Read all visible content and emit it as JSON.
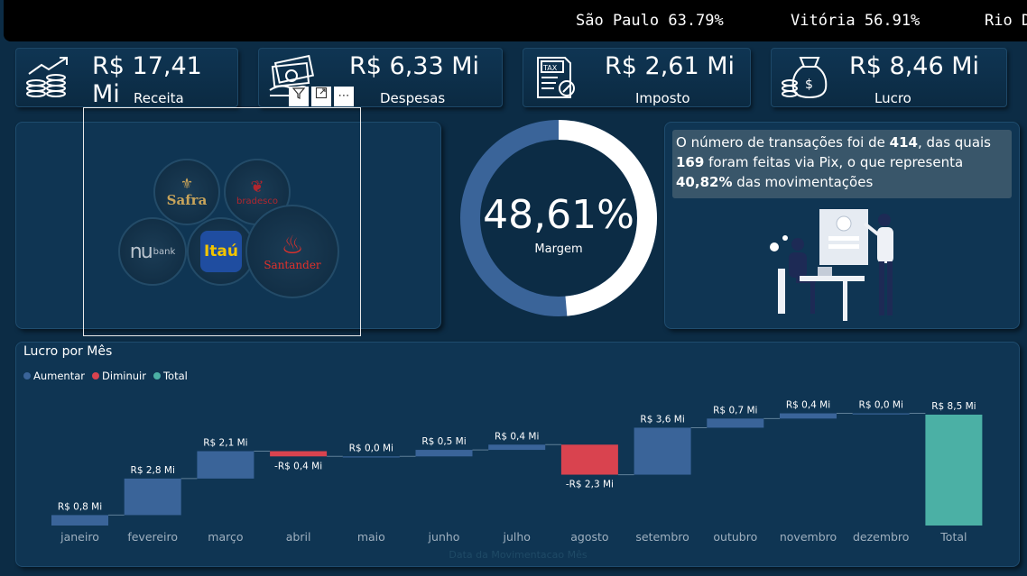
{
  "ticker": {
    "items": [
      "São Paulo 63.79%",
      "Vitória 56.91%",
      "Rio D"
    ]
  },
  "kpis": [
    {
      "value": "R$ 17,41 Mi",
      "label": "Receita",
      "icon": "revenue-growth-icon"
    },
    {
      "value": "R$ 6,33 Mi",
      "label": "Despesas",
      "icon": "money-hand-icon"
    },
    {
      "value": "R$ 2,61 Mi",
      "label": "Imposto",
      "icon": "tax-document-icon"
    },
    {
      "value": "R$ 8,46 Mi",
      "label": "Lucro",
      "icon": "money-bag-icon"
    }
  ],
  "visual_tools": {
    "filter": "filter-icon",
    "focus": "focus-mode-icon",
    "more": "⋯"
  },
  "banks": {
    "safra": "Safra",
    "bradesco": "bradesco",
    "nubank": "bank",
    "itau": "Itaú",
    "santander": "Santander"
  },
  "margin": {
    "value": "48,61%",
    "label": "Margem",
    "fraction": 0.4861
  },
  "info": {
    "part1": "O número de transações foi de ",
    "total": "414",
    "part2": ", das quais ",
    "pix": "169",
    "part3": " foram feitas via Pix, o que representa ",
    "percent": "40,82%",
    "part4": " das movimentações"
  },
  "colors": {
    "increase": "#3a6499",
    "decrease": "#d9434f",
    "total": "#4bb0a5",
    "donut_fill": "#3a6499",
    "donut_rest": "#ffffff"
  },
  "chart_data": {
    "type": "waterfall",
    "title": "Lucro por Mês",
    "xlabel": "Data da Movimentacao Mês",
    "legend": [
      "Aumentar",
      "Diminuir",
      "Total"
    ],
    "legend_position": "top-left",
    "categories": [
      "janeiro",
      "fevereiro",
      "março",
      "abril",
      "maio",
      "junho",
      "julho",
      "agosto",
      "setembro",
      "outubro",
      "novembro",
      "dezembro",
      "Total"
    ],
    "values": [
      0.8,
      2.8,
      2.1,
      -0.4,
      0.0,
      0.5,
      0.4,
      -2.3,
      3.6,
      0.7,
      0.4,
      0.0,
      8.5
    ],
    "labels": [
      "R$ 0,8 Mi",
      "R$ 2,8 Mi",
      "R$ 2,1 Mi",
      "-R$ 0,4 Mi",
      "R$ 0,0 Mi",
      "R$ 0,5 Mi",
      "R$ 0,4 Mi",
      "-R$ 2,3 Mi",
      "R$ 3,6 Mi",
      "R$ 0,7 Mi",
      "R$ 0,4 Mi",
      "R$ 0,0 Mi",
      "R$ 8,5 Mi"
    ],
    "kinds": [
      "inc",
      "inc",
      "inc",
      "dec",
      "inc",
      "inc",
      "inc",
      "dec",
      "inc",
      "inc",
      "inc",
      "inc",
      "total"
    ],
    "ylim": [
      0,
      8.5
    ]
  }
}
